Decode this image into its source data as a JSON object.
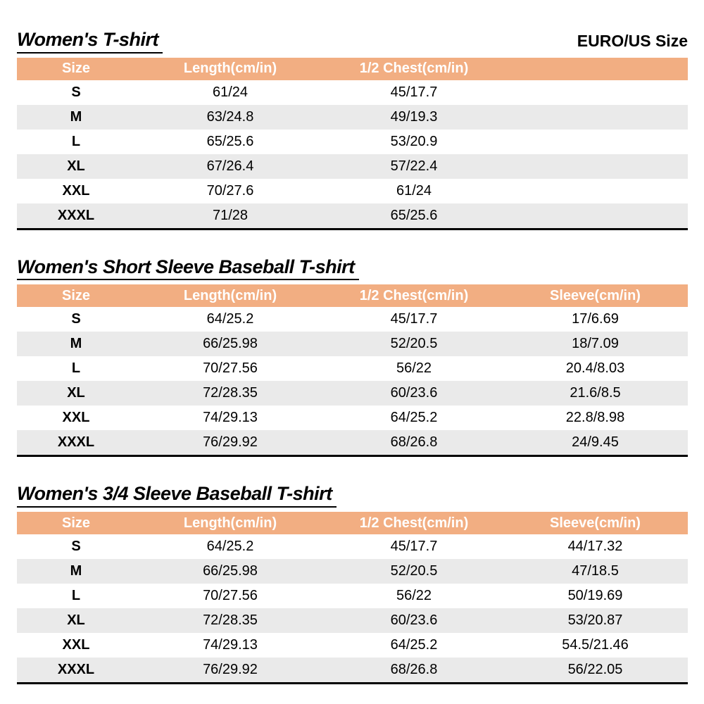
{
  "page": {
    "size_standard_label": "EURO/US Size"
  },
  "colors": {
    "header_bg": "#F2AE82",
    "row_alt_bg": "#EAEAEA",
    "border": "#000000",
    "header_text": "#FFFFFF"
  },
  "sections": [
    {
      "title": "Women's T-shirt",
      "columns": [
        "Size",
        "Length(cm/in)",
        "1/2 Chest(cm/in)",
        ""
      ],
      "rows": [
        [
          "S",
          "61/24",
          "45/17.7",
          ""
        ],
        [
          "M",
          "63/24.8",
          "49/19.3",
          ""
        ],
        [
          "L",
          "65/25.6",
          "53/20.9",
          ""
        ],
        [
          "XL",
          "67/26.4",
          "57/22.4",
          ""
        ],
        [
          "XXL",
          "70/27.6",
          "61/24",
          ""
        ],
        [
          "XXXL",
          "71/28",
          "65/25.6",
          ""
        ]
      ]
    },
    {
      "title": "Women's Short Sleeve Baseball T-shirt",
      "columns": [
        "Size",
        "Length(cm/in)",
        "1/2 Chest(cm/in)",
        "Sleeve(cm/in)"
      ],
      "rows": [
        [
          "S",
          "64/25.2",
          "45/17.7",
          "17/6.69"
        ],
        [
          "M",
          "66/25.98",
          "52/20.5",
          "18/7.09"
        ],
        [
          "L",
          "70/27.56",
          "56/22",
          "20.4/8.03"
        ],
        [
          "XL",
          "72/28.35",
          "60/23.6",
          "21.6/8.5"
        ],
        [
          "XXL",
          "74/29.13",
          "64/25.2",
          "22.8/8.98"
        ],
        [
          "XXXL",
          "76/29.92",
          "68/26.8",
          "24/9.45"
        ]
      ]
    },
    {
      "title": "Women's 3/4 Sleeve Baseball T-shirt",
      "columns": [
        "Size",
        "Length(cm/in)",
        "1/2 Chest(cm/in)",
        "Sleeve(cm/in)"
      ],
      "rows": [
        [
          "S",
          "64/25.2",
          "45/17.7",
          "44/17.32"
        ],
        [
          "M",
          "66/25.98",
          "52/20.5",
          "47/18.5"
        ],
        [
          "L",
          "70/27.56",
          "56/22",
          "50/19.69"
        ],
        [
          "XL",
          "72/28.35",
          "60/23.6",
          "53/20.87"
        ],
        [
          "XXL",
          "74/29.13",
          "64/25.2",
          "54.5/21.46"
        ],
        [
          "XXXL",
          "76/29.92",
          "68/26.8",
          "56/22.05"
        ]
      ]
    }
  ]
}
